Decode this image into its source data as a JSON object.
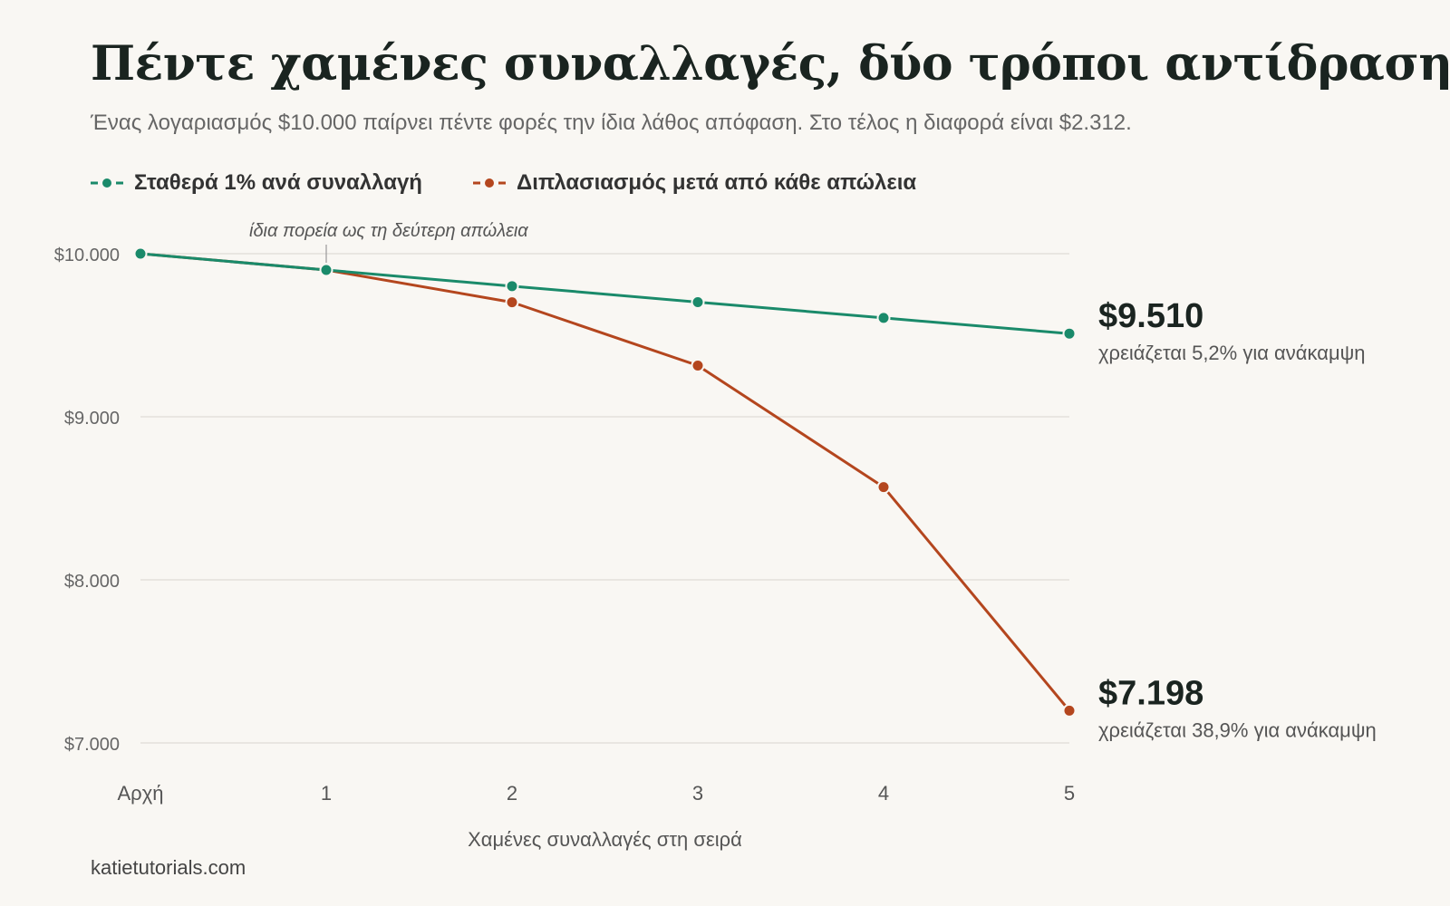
{
  "header": {
    "title": "Πέντε χαμένες συναλλαγές, δύο τρόποι αντίδρασης",
    "subtitle": "Ένας λογαριασμός $10.000 παίρνει πέντε φορές την ίδια λάθος απόφαση. Στο τέλος η διαφορά είναι $2.312."
  },
  "colors": {
    "green": "#1a8a6a",
    "orange": "#b4461e",
    "grid": "#e4e1db"
  },
  "chart_data": {
    "type": "line",
    "categories": [
      "Αρχή",
      "1",
      "2",
      "3",
      "4",
      "5"
    ],
    "xlabel": "Χαμένες συναλλαγές στη σειρά",
    "ylabel": "",
    "ylim": [
      7000,
      10000
    ],
    "yticks": [
      {
        "value": 10000,
        "label": "$10.000"
      },
      {
        "value": 9000,
        "label": "$9.000"
      },
      {
        "value": 8000,
        "label": "$8.000"
      },
      {
        "value": 7000,
        "label": "$7.000"
      }
    ],
    "grid": true,
    "legend_position": "top-left",
    "series": [
      {
        "name": "Σταθερά 1% ανά συναλλαγή",
        "color": "#1a8a6a",
        "values": [
          10000,
          9900,
          9801,
          9703,
          9606,
          9510
        ],
        "end_label": "$9.510",
        "end_note": "χρειάζεται 5,2% για ανάκαμψη"
      },
      {
        "name": "Διπλασιασμός μετά από κάθε απώλεια",
        "color": "#b4461e",
        "values": [
          10000,
          9900,
          9702,
          9314,
          8569,
          7198
        ],
        "end_label": "$7.198",
        "end_note": "χρειάζεται 38,9% για ανάκαμψη"
      }
    ],
    "annotation": {
      "text": "ίδια πορεία ως τη δεύτερη απώλεια",
      "x_index": 1
    }
  },
  "footer": {
    "source": "katietutorials.com"
  }
}
